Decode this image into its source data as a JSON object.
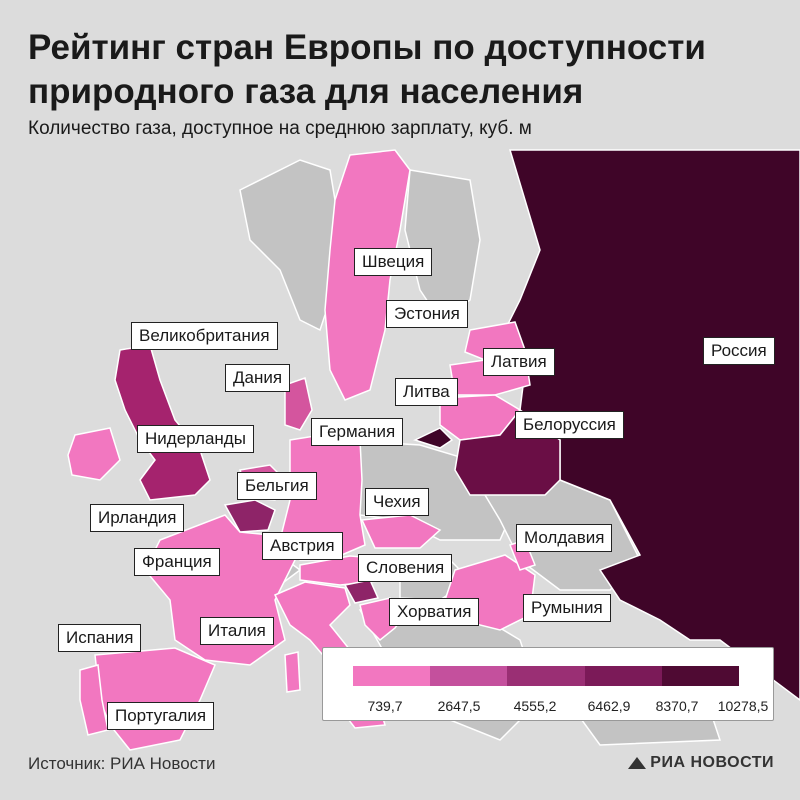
{
  "title": "Рейтинг стран Европы по доступности природного газа для населения",
  "subtitle": "Количество газа, доступное на среднюю зарплату, куб. м",
  "source": "Источник: РИА Новости",
  "brand": "РИА НОВОСТИ",
  "colors": {
    "background": "#dcdcdc",
    "sea": "#dcdcdc",
    "land_other": "#c3c3c3",
    "borders": "#ffffff",
    "scale": [
      "#f277c0",
      "#c4509d",
      "#9a2f74",
      "#7b1a58",
      "#4f0a33",
      "#3a0322"
    ]
  },
  "legend": {
    "ticks": [
      "739,7",
      "2647,5",
      "4555,2",
      "6462,9",
      "8370,7",
      "10278,5"
    ]
  },
  "countries": [
    {
      "name": "Швеция",
      "color": "#f277c0"
    },
    {
      "name": "Эстония",
      "color": "#f277c0"
    },
    {
      "name": "Великобритания",
      "color": "#a5236e"
    },
    {
      "name": "Латвия",
      "color": "#f277c0"
    },
    {
      "name": "Россия",
      "color": "#3f0528"
    },
    {
      "name": "Дания",
      "color": "#d4559e"
    },
    {
      "name": "Литва",
      "color": "#f277c0"
    },
    {
      "name": "Нидерланды",
      "color": "#d4559e"
    },
    {
      "name": "Германия",
      "color": "#f277c0"
    },
    {
      "name": "Белоруссия",
      "color": "#6a0e45"
    },
    {
      "name": "Бельгия",
      "color": "#8e2468"
    },
    {
      "name": "Чехия",
      "color": "#f277c0"
    },
    {
      "name": "Ирландия",
      "color": "#f277c0"
    },
    {
      "name": "Австрия",
      "color": "#f277c0"
    },
    {
      "name": "Молдавия",
      "color": "#f277c0"
    },
    {
      "name": "Франция",
      "color": "#f277c0"
    },
    {
      "name": "Словения",
      "color": "#8e2468"
    },
    {
      "name": "Хорватия",
      "color": "#f277c0"
    },
    {
      "name": "Румыния",
      "color": "#f277c0"
    },
    {
      "name": "Испания",
      "color": "#f277c0"
    },
    {
      "name": "Италия",
      "color": "#f277c0"
    },
    {
      "name": "Португалия",
      "color": "#f277c0"
    }
  ]
}
